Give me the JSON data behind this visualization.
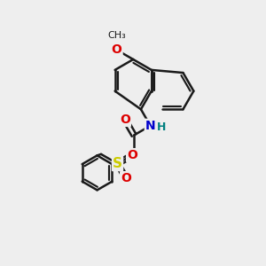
{
  "bg_color": "#eeeeee",
  "bond_color": "#1a1a1a",
  "bond_width": 1.8,
  "atom_colors": {
    "O": "#dd0000",
    "N": "#0000cc",
    "S": "#cccc00",
    "H": "#008080",
    "C": "#1a1a1a"
  },
  "font_size": 9
}
